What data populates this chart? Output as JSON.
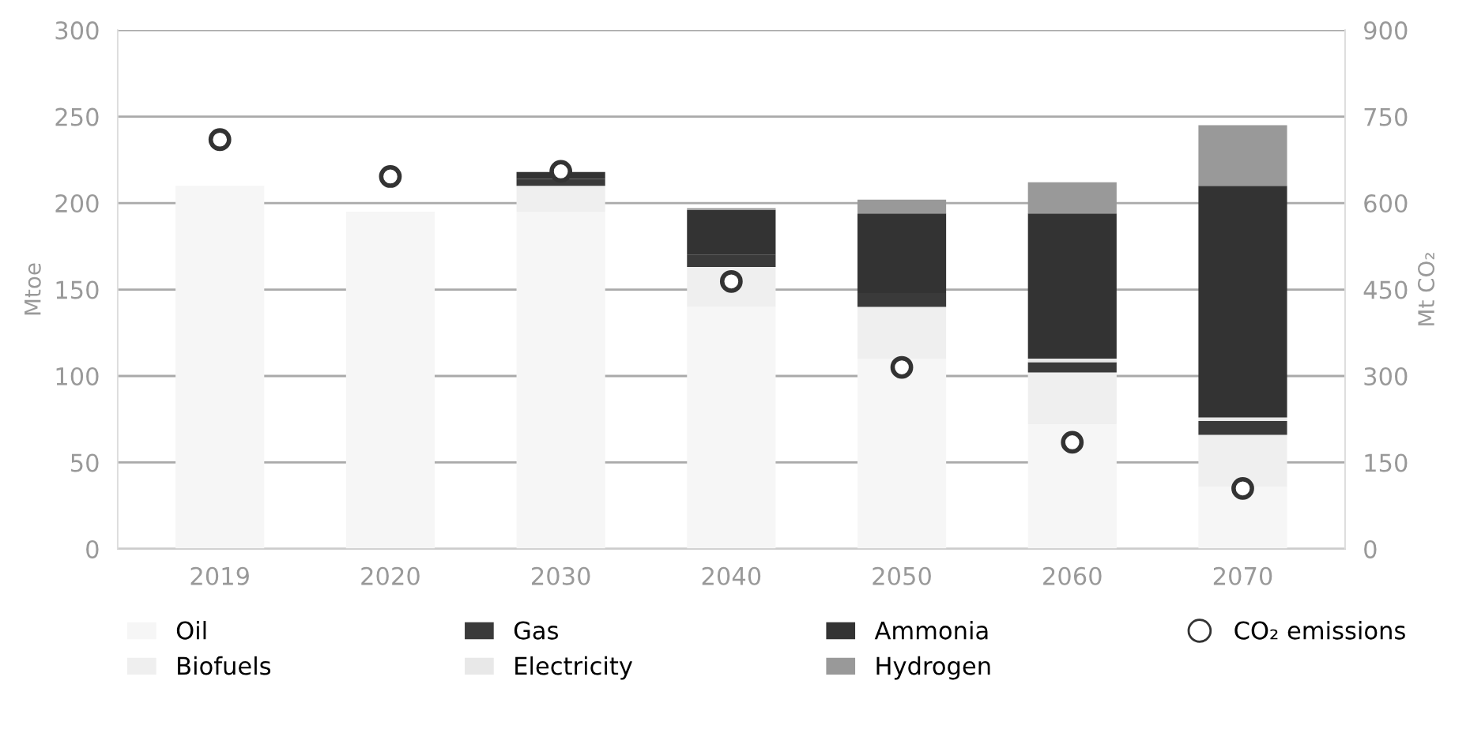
{
  "chart_data": {
    "type": "bar",
    "stacked": true,
    "ylabel": "Mtoe",
    "y2label": "Mt CO₂",
    "categories": [
      "2019",
      "2020",
      "2030",
      "2040",
      "2050",
      "2060",
      "2070"
    ],
    "series": [
      {
        "name": "Oil",
        "color": "#f6f6f6",
        "values": [
          210,
          195,
          195,
          140,
          110,
          72,
          36
        ]
      },
      {
        "name": "Biofuels",
        "color": "#efefef",
        "values": [
          null,
          null,
          15,
          23,
          30,
          30,
          30
        ]
      },
      {
        "name": "Gas",
        "color": "#3a3a3a",
        "values": [
          0,
          0,
          4,
          7,
          8,
          6,
          8
        ]
      },
      {
        "name": "Electricity",
        "color": "#e8e8e8",
        "values": [
          0,
          0,
          0,
          0,
          0,
          2,
          2
        ]
      },
      {
        "name": "Ammonia",
        "color": "#333333",
        "values": [
          0,
          0,
          4,
          26,
          46,
          84,
          134
        ]
      },
      {
        "name": "Hydrogen",
        "color": "#999999",
        "values": [
          0,
          0,
          0,
          1,
          8,
          18,
          35
        ]
      },
      {
        "name": "CO₂ emissions",
        "type": "scatter",
        "axis": "y2",
        "color": "#333333",
        "marker": "circle",
        "values": [
          710,
          646,
          655,
          464,
          315,
          185,
          105
        ]
      }
    ],
    "ylim": [
      0,
      300
    ],
    "yticks": [
      0,
      50,
      100,
      150,
      200,
      250,
      300
    ],
    "y2lim": [
      0,
      900
    ],
    "y2ticks": [
      0,
      150,
      300,
      450,
      600,
      750,
      900
    ],
    "grid": "y",
    "legend": "bottom"
  }
}
